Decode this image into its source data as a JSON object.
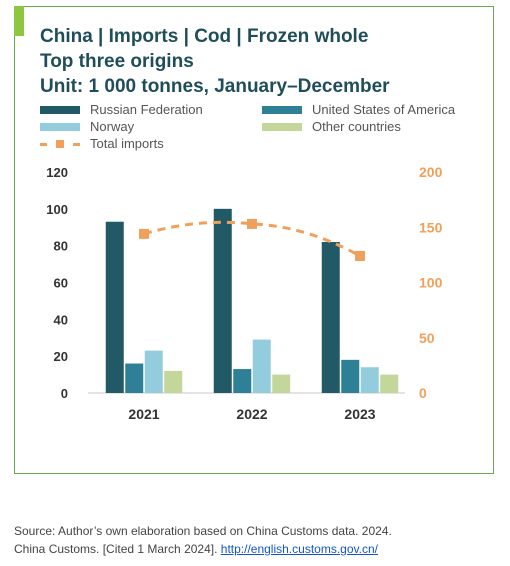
{
  "title": {
    "line1": "China | Imports | Cod | Frozen whole",
    "line2": "Top three origins",
    "line3": "Unit: 1 000 tonnes, January–December"
  },
  "legend": {
    "russia": "Russian Federation",
    "usa": "United States of America",
    "norway": "Norway",
    "other": "Other countries",
    "total": "Total imports"
  },
  "colors": {
    "russia": "#215967",
    "usa": "#2e8096",
    "norway": "#93cddd",
    "other": "#c4d79b",
    "total": "#f0a05a",
    "frame": "#6aa84f"
  },
  "chart_data": {
    "type": "bar",
    "categories": [
      "2021",
      "2022",
      "2023"
    ],
    "series": [
      {
        "name": "Russian Federation",
        "values": [
          93,
          100,
          82
        ],
        "axis": "left"
      },
      {
        "name": "United States of America",
        "values": [
          16,
          13,
          18
        ],
        "axis": "left"
      },
      {
        "name": "Norway",
        "values": [
          23,
          29,
          14
        ],
        "axis": "left"
      },
      {
        "name": "Other countries",
        "values": [
          12,
          10,
          10
        ],
        "axis": "left"
      }
    ],
    "line_series": {
      "name": "Total imports",
      "values": [
        144,
        153,
        124
      ],
      "axis": "right"
    },
    "ylim_left": [
      0,
      120
    ],
    "yticks_left": [
      "0",
      "20",
      "40",
      "60",
      "80",
      "100",
      "120"
    ],
    "ylim_right": [
      0,
      200
    ],
    "yticks_right": [
      "0",
      "50",
      "100",
      "150",
      "200"
    ],
    "grid": false,
    "legend_position": "top"
  },
  "source": {
    "line1": "Source: Author’s own elaboration based on China Customs data. 2024.",
    "line2_prefix": "China Customs. [Cited 1 March 2024]. ",
    "link": "http://english.customs.gov.cn/"
  }
}
